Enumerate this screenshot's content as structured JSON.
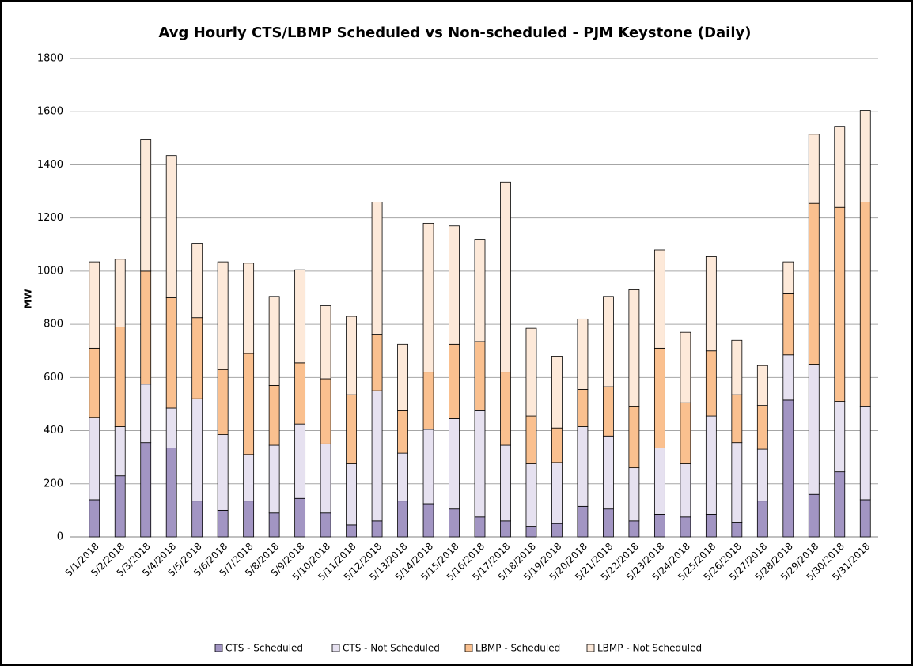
{
  "chart_data": {
    "type": "stacked_bar",
    "title": "Avg Hourly CTS/LBMP Scheduled vs Non-scheduled - PJM Keystone (Daily)",
    "y_label": "MW",
    "categories": [
      "5/1/2018",
      "5/2/2018",
      "5/3/2018",
      "5/4/2018",
      "5/5/2018",
      "5/6/2018",
      "5/7/2018",
      "5/8/2018",
      "5/9/2018",
      "5/10/2018",
      "5/11/2018",
      "5/12/2018",
      "5/13/2018",
      "5/14/2018",
      "5/15/2018",
      "5/16/2018",
      "5/17/2018",
      "5/18/2018",
      "5/19/2018",
      "5/20/2018",
      "5/21/2018",
      "5/22/2018",
      "5/23/2018",
      "5/24/2018",
      "5/25/2018",
      "5/26/2018",
      "5/27/2018",
      "5/28/2018",
      "5/29/2018",
      "5/30/2018",
      "5/31/2018"
    ],
    "series": [
      {
        "name": "CTS - Scheduled",
        "color": "#a295c3",
        "values": [
          140,
          230,
          355,
          335,
          135,
          100,
          135,
          90,
          145,
          90,
          45,
          60,
          135,
          125,
          105,
          75,
          60,
          40,
          50,
          115,
          105,
          60,
          85,
          75,
          85,
          55,
          135,
          515,
          160,
          245,
          140
        ]
      },
      {
        "name": "CTS - Not Scheduled",
        "color": "#e6e1f0",
        "values": [
          310,
          185,
          220,
          150,
          385,
          285,
          175,
          255,
          280,
          260,
          230,
          490,
          180,
          280,
          340,
          400,
          285,
          235,
          230,
          300,
          275,
          200,
          250,
          200,
          370,
          300,
          195,
          170,
          490,
          265,
          350
        ]
      },
      {
        "name": "LBMP - Scheduled",
        "color": "#fac08f",
        "values": [
          260,
          375,
          425,
          415,
          305,
          245,
          380,
          225,
          230,
          245,
          260,
          210,
          160,
          215,
          280,
          260,
          275,
          180,
          130,
          140,
          185,
          230,
          375,
          230,
          245,
          180,
          165,
          230,
          605,
          730,
          770
        ]
      },
      {
        "name": "LBMP - Not Scheduled",
        "color": "#fde9d9",
        "values": [
          325,
          255,
          495,
          535,
          280,
          405,
          340,
          335,
          350,
          275,
          295,
          500,
          250,
          560,
          445,
          385,
          715,
          330,
          270,
          265,
          340,
          440,
          370,
          265,
          355,
          205,
          150,
          120,
          260,
          305,
          345
        ]
      }
    ],
    "ylim": [
      0,
      1800
    ],
    "yticks": [
      0,
      200,
      400,
      600,
      800,
      1000,
      1200,
      1400,
      1600,
      1800
    ],
    "grid": true,
    "legend": "bottom"
  }
}
